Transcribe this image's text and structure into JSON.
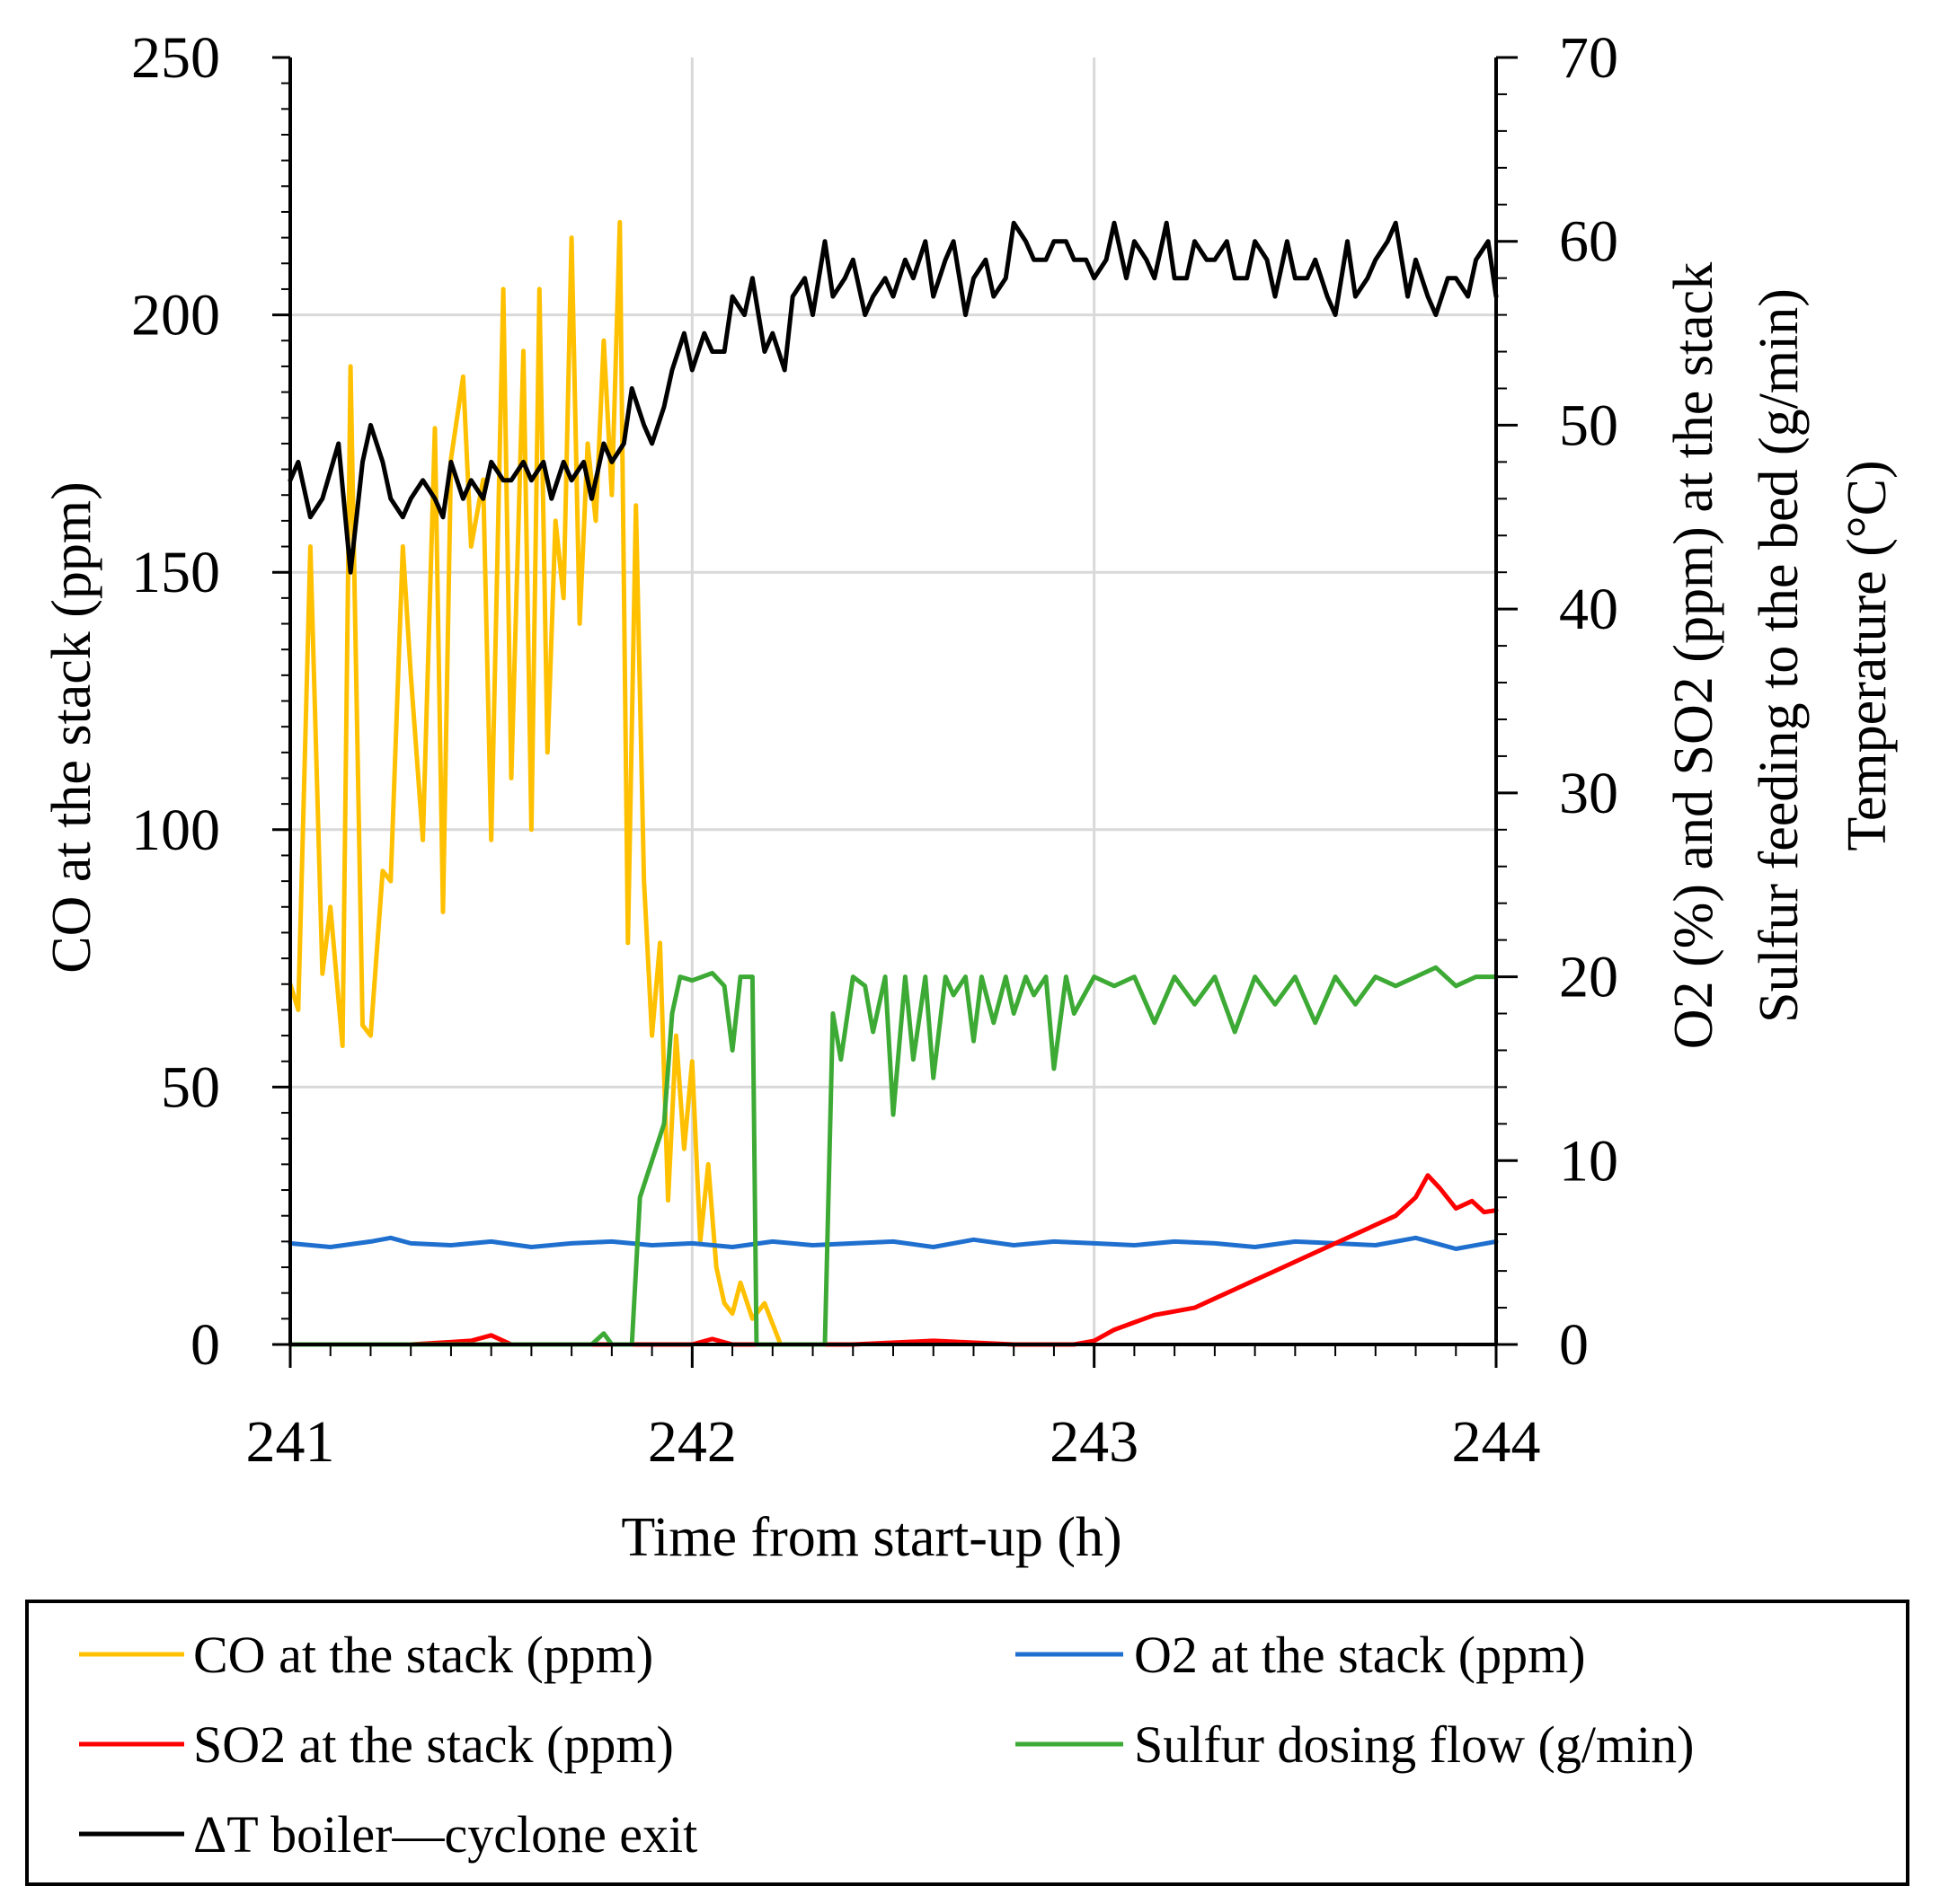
{
  "chart_data": {
    "type": "line",
    "xlabel": "Time from start-up (h)",
    "ylabel_left": "CO at the stack (ppm)",
    "ylabel_right_lines": [
      "O2 (%) and SO2 (ppm) at the stack",
      "Sulfur feeding to the bed (g/min)",
      "Temperature (°C)"
    ],
    "xlim": [
      241,
      244
    ],
    "ylim_left": [
      0,
      250
    ],
    "ylim_right": [
      0,
      70
    ],
    "x_ticks": [
      "241",
      "242",
      "243",
      "244"
    ],
    "y_left_ticks": [
      "0",
      "50",
      "100",
      "150",
      "200",
      "250"
    ],
    "y_right_ticks": [
      "0",
      "10",
      "20",
      "30",
      "40",
      "50",
      "60",
      "70"
    ],
    "grid": true,
    "legend_position": "bottom",
    "series": [
      {
        "name": "CO at the stack (ppm)",
        "axis": "left",
        "color": "#FFC000",
        "x": [
          241.0,
          241.02,
          241.05,
          241.08,
          241.1,
          241.13,
          241.15,
          241.18,
          241.2,
          241.23,
          241.25,
          241.28,
          241.3,
          241.33,
          241.36,
          241.38,
          241.4,
          241.43,
          241.45,
          241.48,
          241.5,
          241.53,
          241.55,
          241.58,
          241.6,
          241.62,
          241.64,
          241.66,
          241.68,
          241.7,
          241.72,
          241.74,
          241.76,
          241.78,
          241.8,
          241.82,
          241.84,
          241.86,
          241.88,
          241.9,
          241.92,
          241.94,
          241.96,
          241.98,
          242.0,
          242.02,
          242.04,
          242.06,
          242.08,
          242.1,
          242.12,
          242.15,
          242.18,
          242.22,
          242.26,
          242.3,
          242.35
        ],
        "values": [
          70,
          65,
          155,
          72,
          85,
          58,
          190,
          62,
          60,
          92,
          90,
          155,
          130,
          98,
          178,
          84,
          172,
          188,
          155,
          168,
          98,
          205,
          110,
          193,
          100,
          205,
          115,
          160,
          145,
          215,
          140,
          175,
          160,
          195,
          165,
          218,
          78,
          163,
          90,
          60,
          78,
          28,
          60,
          38,
          55,
          20,
          35,
          15,
          8,
          6,
          12,
          5,
          8,
          0,
          0,
          0,
          0
        ]
      },
      {
        "name": "O2 at the stack (ppm)",
        "axis": "right",
        "color": "#1F6FCF",
        "x": [
          241.0,
          241.1,
          241.2,
          241.25,
          241.3,
          241.4,
          241.5,
          241.6,
          241.7,
          241.8,
          241.9,
          242.0,
          242.1,
          242.2,
          242.3,
          242.4,
          242.5,
          242.6,
          242.7,
          242.8,
          242.9,
          243.0,
          243.1,
          243.2,
          243.3,
          243.4,
          243.5,
          243.6,
          243.7,
          243.8,
          243.9,
          244.0
        ],
        "values": [
          5.5,
          5.3,
          5.6,
          5.8,
          5.5,
          5.4,
          5.6,
          5.3,
          5.5,
          5.6,
          5.4,
          5.5,
          5.3,
          5.6,
          5.4,
          5.5,
          5.6,
          5.3,
          5.7,
          5.4,
          5.6,
          5.5,
          5.4,
          5.6,
          5.5,
          5.3,
          5.6,
          5.5,
          5.4,
          5.8,
          5.2,
          5.6
        ]
      },
      {
        "name": "SO2 at the stack (ppm)",
        "axis": "right",
        "color": "#FF0000",
        "x": [
          241.0,
          241.3,
          241.45,
          241.5,
          241.55,
          241.7,
          242.0,
          242.05,
          242.1,
          242.4,
          242.6,
          242.8,
          242.95,
          243.0,
          243.05,
          243.1,
          243.15,
          243.2,
          243.25,
          243.3,
          243.35,
          243.4,
          243.45,
          243.5,
          243.55,
          243.6,
          243.65,
          243.7,
          243.75,
          243.8,
          243.83,
          243.86,
          243.9,
          243.94,
          243.97,
          244.0
        ],
        "values": [
          0,
          0,
          0.2,
          0.5,
          0,
          0,
          0,
          0.3,
          0,
          0,
          0.2,
          0,
          0,
          0.2,
          0.8,
          1.2,
          1.6,
          1.8,
          2,
          2.5,
          3,
          3.5,
          4,
          4.5,
          5,
          5.5,
          6,
          6.5,
          7,
          8,
          9.2,
          8.5,
          7.4,
          7.8,
          7.2,
          7.3
        ]
      },
      {
        "name": "Sulfur dosing flow (g/min)",
        "axis": "right",
        "color": "#3DAA35",
        "x": [
          241.0,
          241.5,
          241.75,
          241.78,
          241.8,
          241.85,
          241.87,
          241.9,
          241.93,
          241.95,
          241.97,
          242.0,
          242.05,
          242.08,
          242.1,
          242.12,
          242.15,
          242.16,
          242.18,
          242.3,
          242.33,
          242.35,
          242.37,
          242.4,
          242.43,
          242.45,
          242.48,
          242.5,
          242.53,
          242.55,
          242.58,
          242.6,
          242.63,
          242.65,
          242.68,
          242.7,
          242.72,
          242.75,
          242.78,
          242.8,
          242.83,
          242.85,
          242.88,
          242.9,
          242.93,
          242.95,
          243.0,
          243.05,
          243.1,
          243.15,
          243.2,
          243.25,
          243.3,
          243.35,
          243.4,
          243.45,
          243.5,
          243.55,
          243.6,
          243.65,
          243.7,
          243.75,
          243.8,
          243.85,
          243.9,
          243.95,
          244.0
        ],
        "values": [
          0,
          0,
          0,
          0.6,
          0,
          0,
          8,
          10,
          12,
          18,
          20,
          19.8,
          20.2,
          19.5,
          16,
          20,
          20,
          0,
          0,
          0,
          0,
          18,
          15.5,
          20,
          19.5,
          17,
          20,
          12.5,
          20,
          15.5,
          20,
          14.5,
          20,
          19,
          20,
          16.5,
          20,
          17.5,
          20,
          18,
          20,
          19,
          20,
          15,
          20,
          18,
          20,
          19.5,
          20,
          17.5,
          20,
          18.5,
          20,
          17,
          20,
          18.5,
          20,
          17.5,
          20,
          18.5,
          20,
          19.5,
          20,
          20.5,
          19.5,
          20,
          20
        ]
      },
      {
        "name": "ΔT boiler—cyclone exit",
        "axis": "right",
        "color": "#000000",
        "x": [
          241.0,
          241.02,
          241.05,
          241.08,
          241.12,
          241.15,
          241.18,
          241.2,
          241.23,
          241.25,
          241.28,
          241.3,
          241.33,
          241.36,
          241.38,
          241.4,
          241.43,
          241.45,
          241.48,
          241.5,
          241.53,
          241.55,
          241.58,
          241.6,
          241.63,
          241.65,
          241.68,
          241.7,
          241.73,
          241.75,
          241.78,
          241.8,
          241.83,
          241.85,
          241.88,
          241.9,
          241.93,
          241.95,
          241.98,
          242.0,
          242.03,
          242.05,
          242.08,
          242.1,
          242.13,
          242.15,
          242.18,
          242.2,
          242.23,
          242.25,
          242.28,
          242.3,
          242.33,
          242.35,
          242.38,
          242.4,
          242.43,
          242.45,
          242.48,
          242.5,
          242.53,
          242.55,
          242.58,
          242.6,
          242.63,
          242.65,
          242.68,
          242.7,
          242.73,
          242.75,
          242.78,
          242.8,
          242.83,
          242.85,
          242.88,
          242.9,
          242.93,
          242.95,
          242.98,
          243.0,
          243.03,
          243.05,
          243.08,
          243.1,
          243.13,
          243.15,
          243.18,
          243.2,
          243.23,
          243.25,
          243.28,
          243.3,
          243.33,
          243.35,
          243.38,
          243.4,
          243.43,
          243.45,
          243.48,
          243.5,
          243.53,
          243.55,
          243.58,
          243.6,
          243.63,
          243.65,
          243.68,
          243.7,
          243.73,
          243.75,
          243.78,
          243.8,
          243.83,
          243.85,
          243.88,
          243.9,
          243.93,
          243.95,
          243.98,
          244.0
        ],
        "values": [
          47,
          48,
          45,
          46,
          49,
          42,
          48,
          50,
          48,
          46,
          45,
          46,
          47,
          46,
          45,
          48,
          46,
          47,
          46,
          48,
          47,
          47,
          48,
          47,
          48,
          46,
          48,
          47,
          48,
          46,
          49,
          48,
          49,
          52,
          50,
          49,
          51,
          53,
          55,
          53,
          55,
          54,
          54,
          57,
          56,
          58,
          54,
          55,
          53,
          57,
          58,
          56,
          60,
          57,
          58,
          59,
          56,
          57,
          58,
          57,
          59,
          58,
          60,
          57,
          59,
          60,
          56,
          58,
          59,
          57,
          58,
          61,
          60,
          59,
          59,
          60,
          60,
          59,
          59,
          58,
          59,
          61,
          58,
          60,
          59,
          58,
          61,
          58,
          58,
          60,
          59,
          59,
          60,
          58,
          58,
          60,
          59,
          57,
          60,
          58,
          58,
          59,
          57,
          56,
          60,
          57,
          58,
          59,
          60,
          61,
          57,
          59,
          57,
          56,
          58,
          58,
          57,
          59,
          60,
          57
        ]
      }
    ],
    "legend": [
      {
        "label": "CO at the stack (ppm)",
        "color": "#FFC000"
      },
      {
        "label": "O2 at the stack (ppm)",
        "color": "#1F6FCF"
      },
      {
        "label": "SO2 at the stack (ppm)",
        "color": "#FF0000"
      },
      {
        "label": "Sulfur dosing flow (g/min)",
        "color": "#3DAA35"
      },
      {
        "label": "ΔT boiler—cyclone exit",
        "color": "#000000"
      }
    ]
  }
}
